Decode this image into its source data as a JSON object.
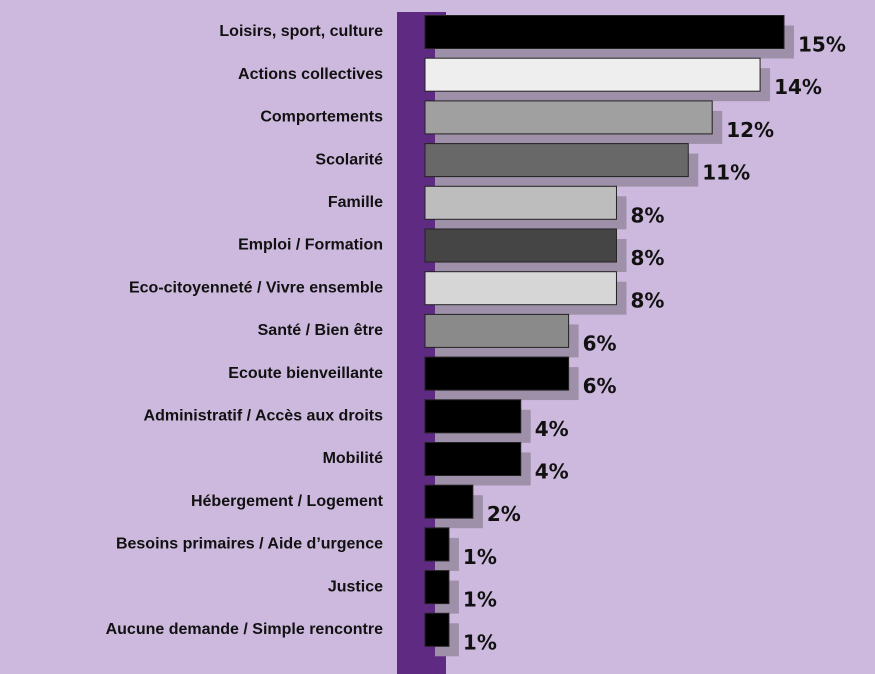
{
  "chart_data": {
    "type": "bar",
    "orientation": "horizontal",
    "categories": [
      "Loisirs, sport, culture",
      "Actions collectives",
      "Comportements",
      "Scolarité",
      "Famille",
      "Emploi / Formation",
      "Eco-citoyenneté / Vivre ensemble",
      "Santé / Bien être",
      "Ecoute bienveillante",
      "Administratif / Accès aux droits",
      "Mobilité",
      "Hébergement / Logement",
      "Besoins primaires / Aide d’urgence",
      "Justice",
      "Aucune demande / Simple rencontre"
    ],
    "values": [
      15,
      14,
      12,
      11,
      8,
      8,
      8,
      6,
      6,
      4,
      4,
      2,
      1,
      1,
      1
    ],
    "value_labels": [
      "15%",
      "14%",
      "12%",
      "11%",
      "8%",
      "8%",
      "8%",
      "6%",
      "6%",
      "4%",
      "4%",
      "2%",
      "1%",
      "1%",
      "1%"
    ],
    "colors": [
      "#000000",
      "#eeeeee",
      "#a0a0a0",
      "#686868",
      "#bdbdbd",
      "#454545",
      "#d6d6d6",
      "#8a8a8a",
      "#000000",
      "#000000",
      "#000000",
      "#000000",
      "#000000",
      "#000000",
      "#000000"
    ]
  }
}
